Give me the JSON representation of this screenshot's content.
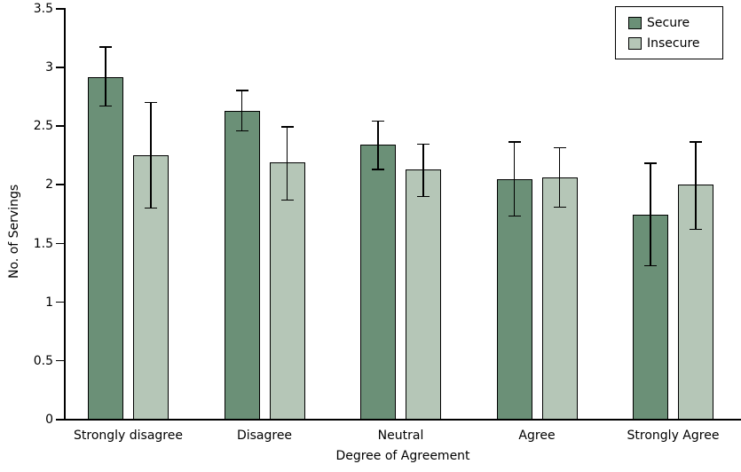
{
  "chart_data": {
    "type": "bar",
    "title": "",
    "xlabel": "Degree of Agreement",
    "ylabel": "No. of Servings",
    "categories": [
      "Strongly disagree",
      "Disagree",
      "Neutral",
      "Agree",
      "Strongly Agree"
    ],
    "series": [
      {
        "name": "Secure",
        "color": "#6b9077",
        "values": [
          2.92,
          2.63,
          2.34,
          2.05,
          1.75
        ],
        "error_low": [
          2.67,
          2.46,
          2.13,
          1.73,
          1.31
        ],
        "error_high": [
          3.18,
          2.81,
          2.55,
          2.37,
          2.19
        ]
      },
      {
        "name": "Insecure",
        "color": "#b5c6b7",
        "values": [
          2.25,
          2.19,
          2.13,
          2.06,
          2.0
        ],
        "error_low": [
          1.8,
          1.87,
          1.9,
          1.81,
          1.62
        ],
        "error_high": [
          2.71,
          2.5,
          2.35,
          2.32,
          2.37
        ]
      }
    ],
    "ylim": [
      0,
      3.5
    ],
    "yticks": [
      0,
      0.5,
      1,
      1.5,
      2,
      2.5,
      3,
      3.5
    ],
    "ytick_labels": [
      "0",
      "0.5",
      "1",
      "1.5",
      "2",
      "2.5",
      "3",
      "3.5"
    ],
    "grid": false,
    "legend_position": "top-right",
    "axis_color": "#000000",
    "error_bar_color": "#000000",
    "background_color": "#ffffff"
  }
}
